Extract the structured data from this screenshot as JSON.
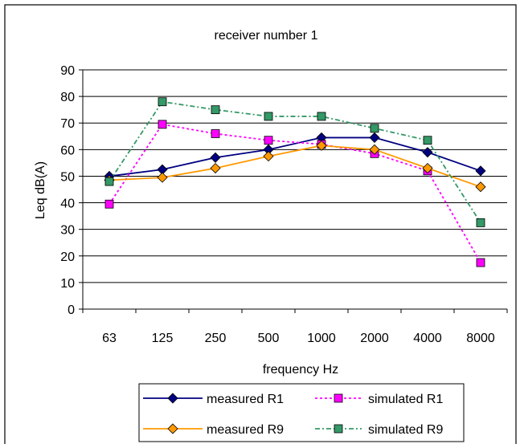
{
  "chart_data": {
    "type": "line",
    "title": "receiver number 1",
    "xlabel": "frequency Hz",
    "ylabel": "Leq dB(A)",
    "categories": [
      "63",
      "125",
      "250",
      "500",
      "1000",
      "2000",
      "4000",
      "8000"
    ],
    "ylim": [
      0,
      90
    ],
    "yticks": [
      "0",
      "10",
      "20",
      "30",
      "40",
      "50",
      "60",
      "70",
      "80",
      "90"
    ],
    "grid": true,
    "legend_position": "bottom",
    "series": [
      {
        "name": "measured R1",
        "values": [
          50,
          52.5,
          57,
          60,
          64.5,
          64.5,
          59,
          52
        ],
        "color": "#000080",
        "marker": "diamond",
        "dash": "solid"
      },
      {
        "name": "simulated R1",
        "values": [
          39.5,
          69.5,
          66,
          63.5,
          62,
          58.5,
          52,
          17.5
        ],
        "color": "#ff00ff",
        "marker": "square",
        "dash": "dotted"
      },
      {
        "name": "measured R9",
        "values": [
          48.5,
          49.5,
          53,
          57.5,
          61.5,
          60,
          53,
          46
        ],
        "color": "#ff9900",
        "marker": "diamond",
        "dash": "solid"
      },
      {
        "name": "simulated R9",
        "values": [
          48,
          78,
          75,
          72.5,
          72.5,
          68,
          63.5,
          32.5
        ],
        "color": "#339966",
        "marker": "square",
        "dash": "dashdot"
      }
    ]
  }
}
